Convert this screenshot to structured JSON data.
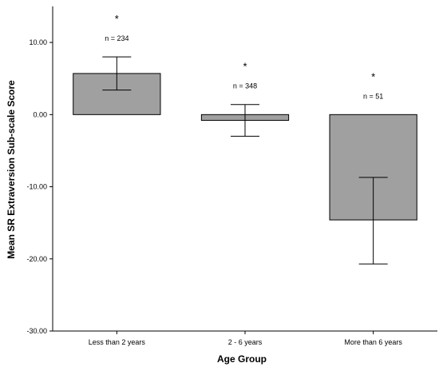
{
  "chart_data": {
    "type": "bar",
    "xlabel": "Age Group",
    "ylabel": "Mean SR Extraversion Sub-scale Score",
    "ylim": [
      -30,
      15
    ],
    "yticks": [
      -30,
      -20,
      -10,
      0,
      10
    ],
    "ytick_labels": [
      "-30.00",
      "-20.00",
      "-10.00",
      "0.00",
      "10.00"
    ],
    "categories": [
      "Less than 2 years",
      "2 - 6 years",
      "More than 6 years"
    ],
    "values": [
      5.7,
      -0.8,
      -14.6
    ],
    "error_low": [
      3.4,
      -3.0,
      -20.7
    ],
    "error_high": [
      8.0,
      1.4,
      -8.7
    ],
    "n_labels": [
      "n = 234",
      "n = 348",
      "n = 51"
    ],
    "significance": [
      "*",
      "*",
      "*"
    ],
    "bar_color": "#a0a0a0",
    "grid": false,
    "legend": "none"
  }
}
